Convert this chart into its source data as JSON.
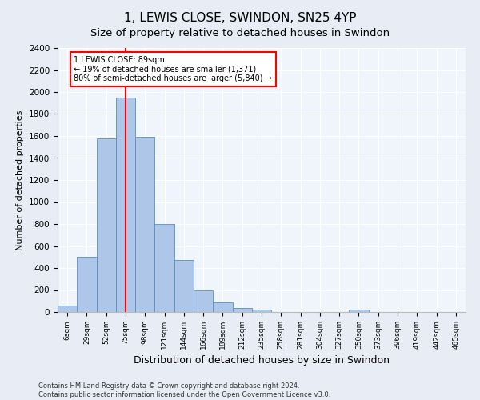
{
  "title": "1, LEWIS CLOSE, SWINDON, SN25 4YP",
  "subtitle": "Size of property relative to detached houses in Swindon",
  "xlabel": "Distribution of detached houses by size in Swindon",
  "ylabel": "Number of detached properties",
  "categories": [
    "6sqm",
    "29sqm",
    "52sqm",
    "75sqm",
    "98sqm",
    "121sqm",
    "144sqm",
    "166sqm",
    "189sqm",
    "212sqm",
    "235sqm",
    "258sqm",
    "281sqm",
    "304sqm",
    "327sqm",
    "350sqm",
    "373sqm",
    "396sqm",
    "419sqm",
    "442sqm",
    "465sqm"
  ],
  "values": [
    55,
    500,
    1580,
    1950,
    1590,
    800,
    475,
    195,
    90,
    35,
    25,
    0,
    0,
    0,
    0,
    25,
    0,
    0,
    0,
    0,
    0
  ],
  "bar_color": "#aec6e8",
  "bar_edge_color": "#5a8fc2",
  "vline_x_index": 3.0,
  "vline_color": "red",
  "annotation_text": "1 LEWIS CLOSE: 89sqm\n← 19% of detached houses are smaller (1,371)\n80% of semi-detached houses are larger (5,840) →",
  "ylim": [
    0,
    2400
  ],
  "yticks": [
    0,
    200,
    400,
    600,
    800,
    1000,
    1200,
    1400,
    1600,
    1800,
    2000,
    2200,
    2400
  ],
  "footer1": "Contains HM Land Registry data © Crown copyright and database right 2024.",
  "footer2": "Contains public sector information licensed under the Open Government Licence v3.0.",
  "bg_color": "#e8edf5",
  "plot_bg_color": "#f0f4fb",
  "title_fontsize": 11,
  "subtitle_fontsize": 9.5,
  "ylabel_fontsize": 8,
  "xlabel_fontsize": 9
}
